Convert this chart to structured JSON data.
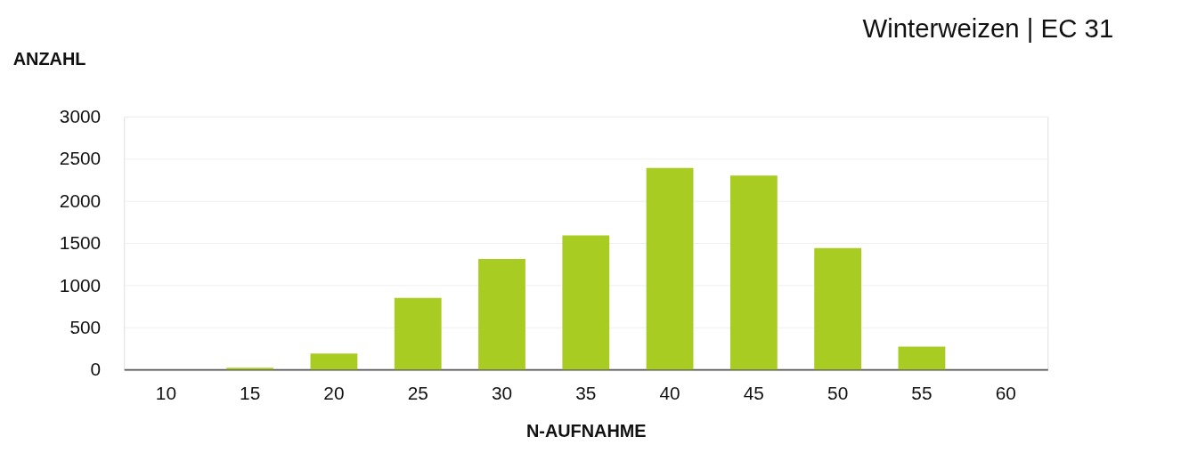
{
  "chart_data": {
    "type": "bar",
    "title": "Winterweizen | EC 31",
    "xlabel": "N-AUFNAHME",
    "ylabel": "ANZAHL",
    "categories": [
      "10",
      "15",
      "20",
      "25",
      "30",
      "35",
      "40",
      "45",
      "50",
      "55",
      "60"
    ],
    "series": [
      {
        "color": "#a8cc22",
        "values": [
          0,
          20,
          190,
          850,
          1310,
          1590,
          2390,
          2300,
          1440,
          270,
          0
        ]
      }
    ],
    "ylim": [
      0,
      3000
    ],
    "yticks": [
      0,
      500,
      1000,
      1500,
      2000,
      2500,
      3000
    ],
    "grid": "y",
    "legend": false
  }
}
